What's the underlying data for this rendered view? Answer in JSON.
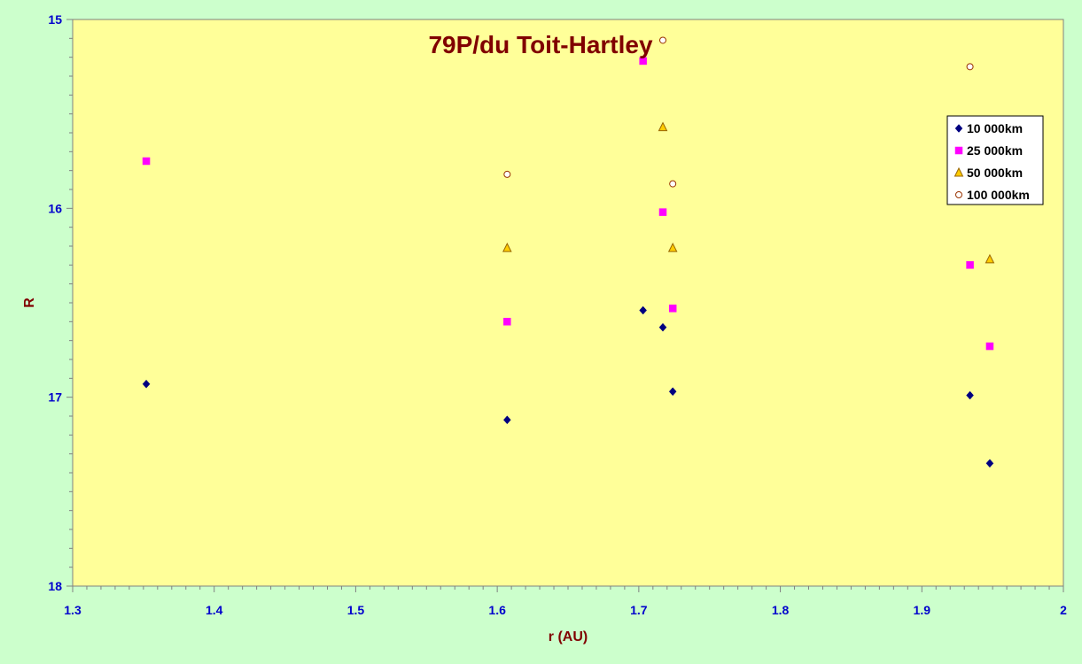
{
  "chart_data": {
    "type": "scatter",
    "title": "79P/du Toit-Hartley",
    "xlabel": "r (AU)",
    "ylabel": "R",
    "xlim": [
      1.3,
      2.0
    ],
    "ylim": [
      15,
      18
    ],
    "y_inverted": true,
    "x_ticks": [
      1.3,
      1.4,
      1.5,
      1.6,
      1.7,
      1.8,
      1.9,
      2.0
    ],
    "x_tick_labels": [
      "1.3",
      "1.4",
      "1.5",
      "1.6",
      "1.7",
      "1.8",
      "1.9",
      "2"
    ],
    "y_ticks": [
      15,
      16,
      17,
      18
    ],
    "y_tick_labels": [
      "15",
      "16",
      "17",
      "18"
    ],
    "grid": false,
    "legend_position": "right",
    "colors": {
      "page_background": "#ccffcc",
      "plot_background": "#ffff99",
      "title": "#800000",
      "tick_labels": "#0000cc"
    },
    "series": [
      {
        "name": "10 000km",
        "marker": "diamond",
        "color": "#000080",
        "points": [
          [
            1.352,
            16.93
          ],
          [
            1.607,
            17.12
          ],
          [
            1.703,
            16.54
          ],
          [
            1.717,
            16.63
          ],
          [
            1.724,
            16.97
          ],
          [
            1.934,
            16.99
          ],
          [
            1.948,
            17.35
          ]
        ]
      },
      {
        "name": "25 000km",
        "marker": "square",
        "color": "#ff00ff",
        "points": [
          [
            1.352,
            15.75
          ],
          [
            1.607,
            16.6
          ],
          [
            1.703,
            15.22
          ],
          [
            1.717,
            16.02
          ],
          [
            1.724,
            16.53
          ],
          [
            1.934,
            16.3
          ],
          [
            1.948,
            16.73
          ]
        ]
      },
      {
        "name": "50 000km",
        "marker": "triangle",
        "color": "#ffcc00",
        "stroke": "#996600",
        "points": [
          [
            1.607,
            16.21
          ],
          [
            1.717,
            15.57
          ],
          [
            1.724,
            16.21
          ],
          [
            1.948,
            16.27
          ]
        ]
      },
      {
        "name": "100 000km",
        "marker": "circle",
        "color": "#ffffff",
        "stroke": "#993300",
        "points": [
          [
            1.607,
            15.82
          ],
          [
            1.717,
            15.11
          ],
          [
            1.724,
            15.87
          ],
          [
            1.934,
            15.25
          ]
        ]
      }
    ]
  }
}
